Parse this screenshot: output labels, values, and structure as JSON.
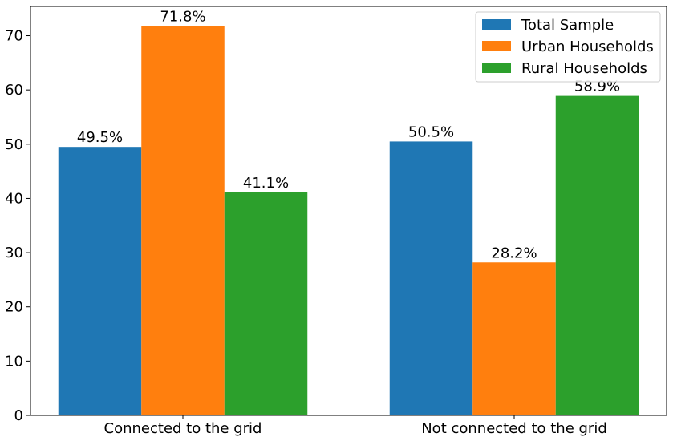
{
  "chart_data": {
    "type": "bar",
    "categories": [
      "Connected to the grid",
      "Not connected to the grid"
    ],
    "series": [
      {
        "name": "Total Sample",
        "values": [
          49.5,
          50.5
        ],
        "color": "#1f77b4"
      },
      {
        "name": "Urban Households",
        "values": [
          71.8,
          28.2
        ],
        "color": "#ff7f0e"
      },
      {
        "name": "Rural Households",
        "values": [
          41.1,
          58.9
        ],
        "color": "#2ca02c"
      }
    ],
    "data_labels": [
      [
        "49.5%",
        "50.5%"
      ],
      [
        "71.8%",
        "28.2%"
      ],
      [
        "41.1%",
        "58.9%"
      ]
    ],
    "yticks": [
      0,
      10,
      20,
      30,
      40,
      50,
      60,
      70
    ],
    "ylim": [
      0,
      75.4
    ],
    "title": "",
    "xlabel": "",
    "ylabel": "",
    "legend_position": "top-right",
    "grid": false
  }
}
